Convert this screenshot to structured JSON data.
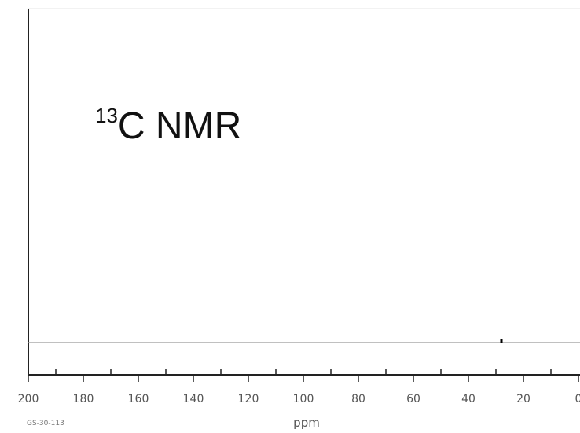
{
  "chart_data": {
    "type": "line",
    "title_superscript": "13",
    "title_main": "C NMR",
    "xlabel": "ppm",
    "ylabel": "",
    "xlim": [
      200,
      0
    ],
    "x_reversed": true,
    "tick_values": [
      200,
      180,
      160,
      140,
      120,
      100,
      80,
      60,
      40,
      20,
      0
    ],
    "tick_labels": [
      "200",
      "180",
      "160",
      "140",
      "120",
      "100",
      "80",
      "60",
      "40",
      "20",
      "0"
    ],
    "minor_tick_step": 10,
    "baseline_level": 0,
    "peaks": [
      {
        "ppm": 28,
        "intensity": 1
      }
    ],
    "sample_code": "GS-30-113",
    "grid": false,
    "colors": {
      "axis": "#222222",
      "baseline": "#9a9a9a",
      "peak": "#000000",
      "label": "#555555"
    }
  }
}
